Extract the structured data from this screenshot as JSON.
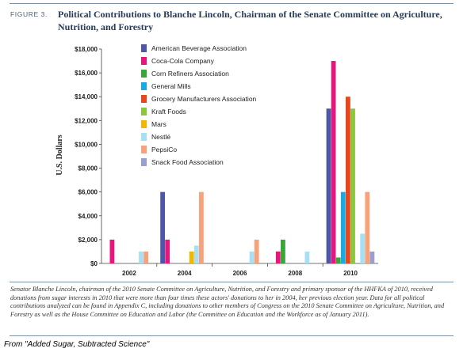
{
  "figure": {
    "label": "FIGURE 3.",
    "title": "Political Contributions to Blanche Lincoln, Chairman of the Senate Committee on Agriculture, Nutrition, and Forestry"
  },
  "chart_data": {
    "type": "bar",
    "title": "",
    "xlabel": "",
    "ylabel": "U.S. Dollars",
    "ylim": [
      0,
      18000
    ],
    "yticks": [
      "$0",
      "$2,000",
      "$4,000",
      "$6,000",
      "$8,000",
      "$10,000",
      "$12,000",
      "$14,000",
      "$16,000",
      "$18,000"
    ],
    "legend_position": "top-left",
    "grid": false,
    "categories": [
      "2002",
      "2004",
      "2006",
      "2008",
      "2010"
    ],
    "series": [
      {
        "name": "American Beverage Association",
        "color": "#4e56a6",
        "values": [
          0,
          6000,
          0,
          0,
          13000
        ]
      },
      {
        "name": "Coca-Cola Company",
        "color": "#e3177e",
        "values": [
          2000,
          2000,
          0,
          1000,
          17000
        ]
      },
      {
        "name": "Corn Refiners Association",
        "color": "#3aa63a",
        "values": [
          0,
          0,
          0,
          2000,
          500
        ]
      },
      {
        "name": "General Mills",
        "color": "#1ba9e1",
        "values": [
          0,
          0,
          0,
          0,
          6000
        ]
      },
      {
        "name": "Grocery Manufacturers Association",
        "color": "#e8461c",
        "values": [
          0,
          0,
          0,
          0,
          14000
        ]
      },
      {
        "name": "Kraft Foods",
        "color": "#8cc63f",
        "values": [
          0,
          0,
          0,
          0,
          13000
        ]
      },
      {
        "name": "Mars",
        "color": "#f2b705",
        "values": [
          0,
          1000,
          0,
          0,
          0
        ]
      },
      {
        "name": "Nestlé",
        "color": "#a8dff2",
        "values": [
          1000,
          1500,
          1000,
          1000,
          2500
        ]
      },
      {
        "name": "PepsiCo",
        "color": "#f7a27a",
        "values": [
          1000,
          6000,
          2000,
          0,
          6000
        ]
      },
      {
        "name": "Snack Food Association",
        "color": "#9b9fcc",
        "values": [
          0,
          0,
          0,
          0,
          1000
        ]
      }
    ]
  },
  "caption": "Senator Blanche Lincoln, chairman of the 2010 Senate Committee on Agriculture, Nutrition, and Forestry and primary sponsor of the HHFKA of 2010, received donations from sugar interests in 2010 that were more than four times these actors' donations to her in 2004, her previous election year. Data for all political contributions analyzed can be found in Appendix C, including donations to other members of Congress on the 2010 Senate Committee on Agriculture, Nutrition, and Forestry as well as the House Committee on Education and Labor (the Committee on Education and the Workforce as of January 2011).",
  "source": "From \"Added Sugar, Subtracted Science\""
}
